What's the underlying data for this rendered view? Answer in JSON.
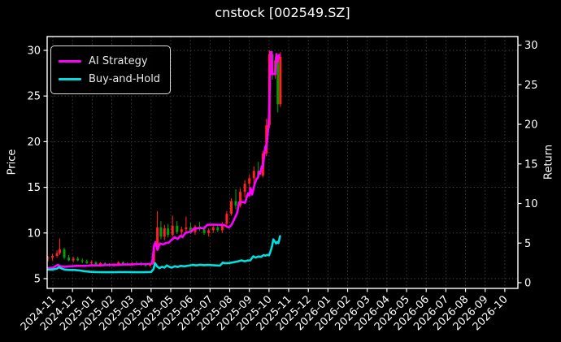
{
  "chart_data": {
    "type": "candlestick",
    "title": "cnstock [002549.SZ]",
    "x_unit": "months since 2024-11-01",
    "x_ticks": [
      "2024-11",
      "2024-12",
      "2025-01",
      "2025-02",
      "2025-03",
      "2025-04",
      "2025-05",
      "2025-06",
      "2025-07",
      "2025-08",
      "2025-09",
      "2025-10",
      "2025-11",
      "2025-12",
      "2026-01",
      "2026-02",
      "2026-03",
      "2026-04",
      "2026-05",
      "2026-06",
      "2026-07",
      "2026-08",
      "2026-09",
      "2026-10"
    ],
    "x_tick_rotation": 45,
    "left_axis": {
      "label": "Price",
      "ticks": [
        5,
        10,
        15,
        20,
        25,
        30
      ],
      "range_approx": [
        3.9,
        31.5
      ]
    },
    "right_axis": {
      "label": "Return",
      "ticks": [
        0,
        5,
        10,
        15,
        20,
        25,
        30
      ],
      "range_approx": [
        -0.7,
        31.0
      ]
    },
    "legend": {
      "position": "upper-left",
      "items": [
        {
          "label": "AI Strategy",
          "color": "#ff00ff"
        },
        {
          "label": "Buy-and-Hold",
          "color": "#00e0e0"
        }
      ]
    },
    "style": {
      "background": "#000000",
      "text_color": "#ffffff",
      "grid_color": "#424242",
      "spine_color": "#ffffff",
      "up_color": "#ff2020",
      "down_color": "#00a000"
    },
    "series": [
      {
        "name": "AI Strategy",
        "type": "line",
        "axis": "left",
        "color": "#ff00ff",
        "points": [
          [
            -0.25,
            6.15
          ],
          [
            0.0,
            6.2
          ],
          [
            0.25,
            6.5
          ],
          [
            0.4,
            6.35
          ],
          [
            0.6,
            6.3
          ],
          [
            0.9,
            6.35
          ],
          [
            1.2,
            6.4
          ],
          [
            1.6,
            6.4
          ],
          [
            2.0,
            6.45
          ],
          [
            2.4,
            6.45
          ],
          [
            2.8,
            6.5
          ],
          [
            3.2,
            6.5
          ],
          [
            3.6,
            6.55
          ],
          [
            4.0,
            6.55
          ],
          [
            4.4,
            6.6
          ],
          [
            4.8,
            6.6
          ],
          [
            5.05,
            6.65
          ],
          [
            5.15,
            8.6
          ],
          [
            5.22,
            9.0
          ],
          [
            5.32,
            8.15
          ],
          [
            5.45,
            8.85
          ],
          [
            5.6,
            8.75
          ],
          [
            5.75,
            8.9
          ],
          [
            5.9,
            8.95
          ],
          [
            6.05,
            9.25
          ],
          [
            6.2,
            9.55
          ],
          [
            6.35,
            9.35
          ],
          [
            6.5,
            9.7
          ],
          [
            6.6,
            9.55
          ],
          [
            6.75,
            10.0
          ],
          [
            6.9,
            10.1
          ],
          [
            7.05,
            10.15
          ],
          [
            7.15,
            10.45
          ],
          [
            7.35,
            10.5
          ],
          [
            7.5,
            10.55
          ],
          [
            7.7,
            10.5
          ],
          [
            7.86,
            10.9
          ],
          [
            8.1,
            10.92
          ],
          [
            8.4,
            10.9
          ],
          [
            8.7,
            10.88
          ],
          [
            8.95,
            10.6
          ],
          [
            9.1,
            10.9
          ],
          [
            9.25,
            11.6
          ],
          [
            9.38,
            12.2
          ],
          [
            9.48,
            13.35
          ],
          [
            9.65,
            13.4
          ],
          [
            9.78,
            13.3
          ],
          [
            9.93,
            14.35
          ],
          [
            10.0,
            14.1
          ],
          [
            10.06,
            14.9
          ],
          [
            10.14,
            14.2
          ],
          [
            10.26,
            15.3
          ],
          [
            10.36,
            15.9
          ],
          [
            10.44,
            16.1
          ],
          [
            10.5,
            16.7
          ],
          [
            10.56,
            16.5
          ],
          [
            10.63,
            17.3
          ],
          [
            10.68,
            17.1
          ],
          [
            10.76,
            18.6
          ],
          [
            10.82,
            19.5
          ],
          [
            10.86,
            19.2
          ],
          [
            10.92,
            20.5
          ],
          [
            10.96,
            21.5
          ],
          [
            11.0,
            23.0
          ],
          [
            11.04,
            26.0
          ],
          [
            11.08,
            29.8
          ],
          [
            11.13,
            29.8
          ],
          [
            11.16,
            27.4
          ],
          [
            11.32,
            27.4
          ],
          [
            11.38,
            29.6
          ],
          [
            11.44,
            28.8
          ],
          [
            11.52,
            29.5
          ]
        ]
      },
      {
        "name": "Buy-and-Hold",
        "type": "line",
        "axis": "left",
        "color": "#00e0e0",
        "points": [
          [
            -0.25,
            6.0
          ],
          [
            0.0,
            6.0
          ],
          [
            0.2,
            6.1
          ],
          [
            0.32,
            6.25
          ],
          [
            0.45,
            6.1
          ],
          [
            0.6,
            6.0
          ],
          [
            0.85,
            5.95
          ],
          [
            1.1,
            5.95
          ],
          [
            1.35,
            5.9
          ],
          [
            1.6,
            5.82
          ],
          [
            1.9,
            5.75
          ],
          [
            2.2,
            5.72
          ],
          [
            2.6,
            5.7
          ],
          [
            3.0,
            5.7
          ],
          [
            3.4,
            5.72
          ],
          [
            3.8,
            5.72
          ],
          [
            4.2,
            5.7
          ],
          [
            4.6,
            5.7
          ],
          [
            5.0,
            5.73
          ],
          [
            5.12,
            6.05
          ],
          [
            5.2,
            6.7
          ],
          [
            5.3,
            6.35
          ],
          [
            5.42,
            6.15
          ],
          [
            5.55,
            6.3
          ],
          [
            5.68,
            6.2
          ],
          [
            5.8,
            6.45
          ],
          [
            5.92,
            6.3
          ],
          [
            6.05,
            6.2
          ],
          [
            6.2,
            6.35
          ],
          [
            6.35,
            6.28
          ],
          [
            6.5,
            6.4
          ],
          [
            6.7,
            6.35
          ],
          [
            6.9,
            6.42
          ],
          [
            7.1,
            6.5
          ],
          [
            7.3,
            6.45
          ],
          [
            7.5,
            6.52
          ],
          [
            7.7,
            6.48
          ],
          [
            7.9,
            6.5
          ],
          [
            8.1,
            6.48
          ],
          [
            8.3,
            6.45
          ],
          [
            8.5,
            6.42
          ],
          [
            8.65,
            6.75
          ],
          [
            8.8,
            6.68
          ],
          [
            9.0,
            6.72
          ],
          [
            9.2,
            6.8
          ],
          [
            9.4,
            6.88
          ],
          [
            9.6,
            7.0
          ],
          [
            9.75,
            6.9
          ],
          [
            9.9,
            6.98
          ],
          [
            10.05,
            7.0
          ],
          [
            10.2,
            7.45
          ],
          [
            10.32,
            7.3
          ],
          [
            10.45,
            7.42
          ],
          [
            10.6,
            7.38
          ],
          [
            10.72,
            7.58
          ],
          [
            10.82,
            7.52
          ],
          [
            10.92,
            7.6
          ],
          [
            11.0,
            7.55
          ],
          [
            11.08,
            8.0
          ],
          [
            11.16,
            8.6
          ],
          [
            11.22,
            9.3
          ],
          [
            11.3,
            9.05
          ],
          [
            11.36,
            8.85
          ],
          [
            11.42,
            9.0
          ],
          [
            11.48,
            8.9
          ],
          [
            11.56,
            9.65
          ]
        ]
      },
      {
        "name": "OHLC candles",
        "type": "candlestick",
        "axis": "left",
        "columns": [
          "t",
          "open",
          "high",
          "low",
          "close"
        ],
        "data": [
          [
            -0.25,
            7.2,
            7.5,
            6.9,
            7.3
          ],
          [
            -0.02,
            7.3,
            7.7,
            7.0,
            7.5
          ],
          [
            0.21,
            7.5,
            8.1,
            7.3,
            7.8
          ],
          [
            0.35,
            7.8,
            9.4,
            7.6,
            8.2
          ],
          [
            0.58,
            8.2,
            8.4,
            7.1,
            7.3
          ],
          [
            0.81,
            7.3,
            7.6,
            6.9,
            7.0
          ],
          [
            1.04,
            7.0,
            7.4,
            6.8,
            7.2
          ],
          [
            1.27,
            7.2,
            7.4,
            6.9,
            7.0
          ],
          [
            1.5,
            7.0,
            7.2,
            6.7,
            6.9
          ],
          [
            1.73,
            6.9,
            7.1,
            6.6,
            6.7
          ],
          [
            1.96,
            6.7,
            7.0,
            6.5,
            6.8
          ],
          [
            2.19,
            6.8,
            6.9,
            6.4,
            6.5
          ],
          [
            2.42,
            6.5,
            6.8,
            6.3,
            6.7
          ],
          [
            2.65,
            6.7,
            6.8,
            6.4,
            6.5
          ],
          [
            2.88,
            6.5,
            6.7,
            6.3,
            6.4
          ],
          [
            3.11,
            6.4,
            6.7,
            6.3,
            6.6
          ],
          [
            3.34,
            6.6,
            6.9,
            6.5,
            6.8
          ],
          [
            3.57,
            6.8,
            6.9,
            6.5,
            6.6
          ],
          [
            3.8,
            6.6,
            6.8,
            6.4,
            6.5
          ],
          [
            4.03,
            6.5,
            6.8,
            6.4,
            6.7
          ],
          [
            4.26,
            6.7,
            6.9,
            6.5,
            6.6
          ],
          [
            4.49,
            6.6,
            6.8,
            6.4,
            6.5
          ],
          [
            4.72,
            6.5,
            6.7,
            6.3,
            6.4
          ],
          [
            4.95,
            6.4,
            6.7,
            6.3,
            6.6
          ],
          [
            5.14,
            6.6,
            8.8,
            6.5,
            8.5
          ],
          [
            5.32,
            8.5,
            12.4,
            8.3,
            10.6
          ],
          [
            5.5,
            10.6,
            11.3,
            9.3,
            9.6
          ],
          [
            5.68,
            9.6,
            10.9,
            9.2,
            10.5
          ],
          [
            5.86,
            10.5,
            11.0,
            9.5,
            9.8
          ],
          [
            6.09,
            9.8,
            11.9,
            9.6,
            10.8
          ],
          [
            6.32,
            10.8,
            11.3,
            9.9,
            10.1
          ],
          [
            6.55,
            10.1,
            10.7,
            9.5,
            10.4
          ],
          [
            6.78,
            10.4,
            11.8,
            10.1,
            10.6
          ],
          [
            7.01,
            10.6,
            11.1,
            9.9,
            10.1
          ],
          [
            7.24,
            10.1,
            10.9,
            9.8,
            10.7
          ],
          [
            7.47,
            10.7,
            11.2,
            10.2,
            10.4
          ],
          [
            7.7,
            10.4,
            10.8,
            9.8,
            10.0
          ],
          [
            7.93,
            10.0,
            10.5,
            9.6,
            10.3
          ],
          [
            8.16,
            10.3,
            10.9,
            10.0,
            10.6
          ],
          [
            8.39,
            10.6,
            11.0,
            10.1,
            10.3
          ],
          [
            8.62,
            10.3,
            11.2,
            10.0,
            11.0
          ],
          [
            8.85,
            11.0,
            12.4,
            10.8,
            12.1
          ],
          [
            9.08,
            12.1,
            13.8,
            11.9,
            13.5
          ],
          [
            9.31,
            13.5,
            14.8,
            12.6,
            13.0
          ],
          [
            9.54,
            13.0,
            14.9,
            12.8,
            14.5
          ],
          [
            9.77,
            14.5,
            15.8,
            13.9,
            15.4
          ],
          [
            10.0,
            15.4,
            16.4,
            14.7,
            16.0
          ],
          [
            10.23,
            16.0,
            17.3,
            15.2,
            16.8
          ],
          [
            10.46,
            16.8,
            17.8,
            15.9,
            16.3
          ],
          [
            10.69,
            16.3,
            19.0,
            16.1,
            18.7
          ],
          [
            10.87,
            18.7,
            22.5,
            18.4,
            21.8
          ],
          [
            11.02,
            21.8,
            30.0,
            21.5,
            29.6
          ],
          [
            11.17,
            29.6,
            29.9,
            26.8,
            27.3
          ],
          [
            11.32,
            27.3,
            29.3,
            26.9,
            28.9
          ],
          [
            11.45,
            28.9,
            29.4,
            23.2,
            24.1
          ],
          [
            11.58,
            24.1,
            29.8,
            23.8,
            29.3
          ]
        ]
      }
    ]
  }
}
